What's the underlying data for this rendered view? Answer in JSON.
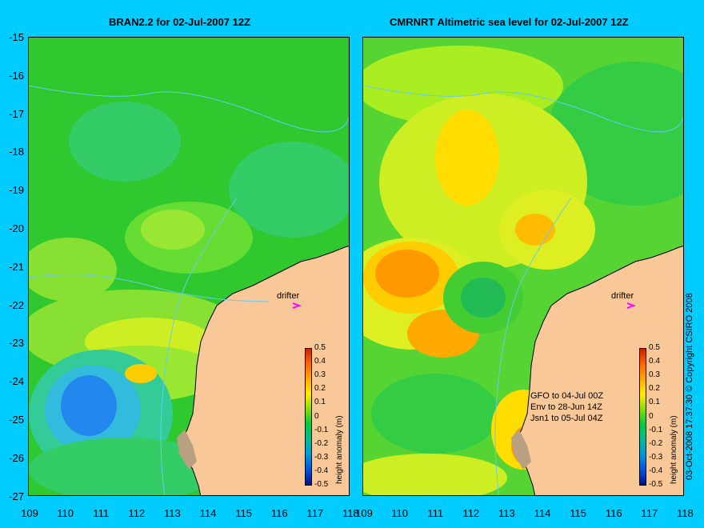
{
  "panels": [
    {
      "title": "BRAN2.2 for 02-Jul-2007 12Z",
      "drifter_label": "drifter"
    },
    {
      "title": "CMRNRT Altimetric sea level  for 02-Jul-2007 12Z",
      "drifter_label": "drifter",
      "legend": [
        "GFO to 04-Jul 00Z",
        "Env to 28-Jun 14Z",
        "Jsn1 to 05-Jul 04Z"
      ]
    }
  ],
  "y_ticks": [
    "-15",
    "-16",
    "-17",
    "-18",
    "-19",
    "-20",
    "-21",
    "-22",
    "-23",
    "-24",
    "-25",
    "-26",
    "-27"
  ],
  "x_ticks_left": [
    "109",
    "110",
    "111",
    "112",
    "113",
    "114",
    "115",
    "116",
    "117",
    "118"
  ],
  "x_ticks_right": [
    "109",
    "110",
    "111",
    "112",
    "113",
    "114",
    "115",
    "116",
    "117",
    "118"
  ],
  "colorbar": {
    "label": "height anomaly (m)",
    "ticks": [
      "0.5",
      "0.4",
      "0.3",
      "0.2",
      "0.1",
      "0",
      "-0.1",
      "-0.2",
      "-0.3",
      "-0.4",
      "-0.5"
    ]
  },
  "copyright": "03-Oct-2008 17:37:30  © Copyright CSIRO 2008",
  "colors": {
    "background": "#00ccff",
    "land": "#f8c898",
    "ocean_base": "#33cc33",
    "drifter_marker": "#ff00ff"
  }
}
